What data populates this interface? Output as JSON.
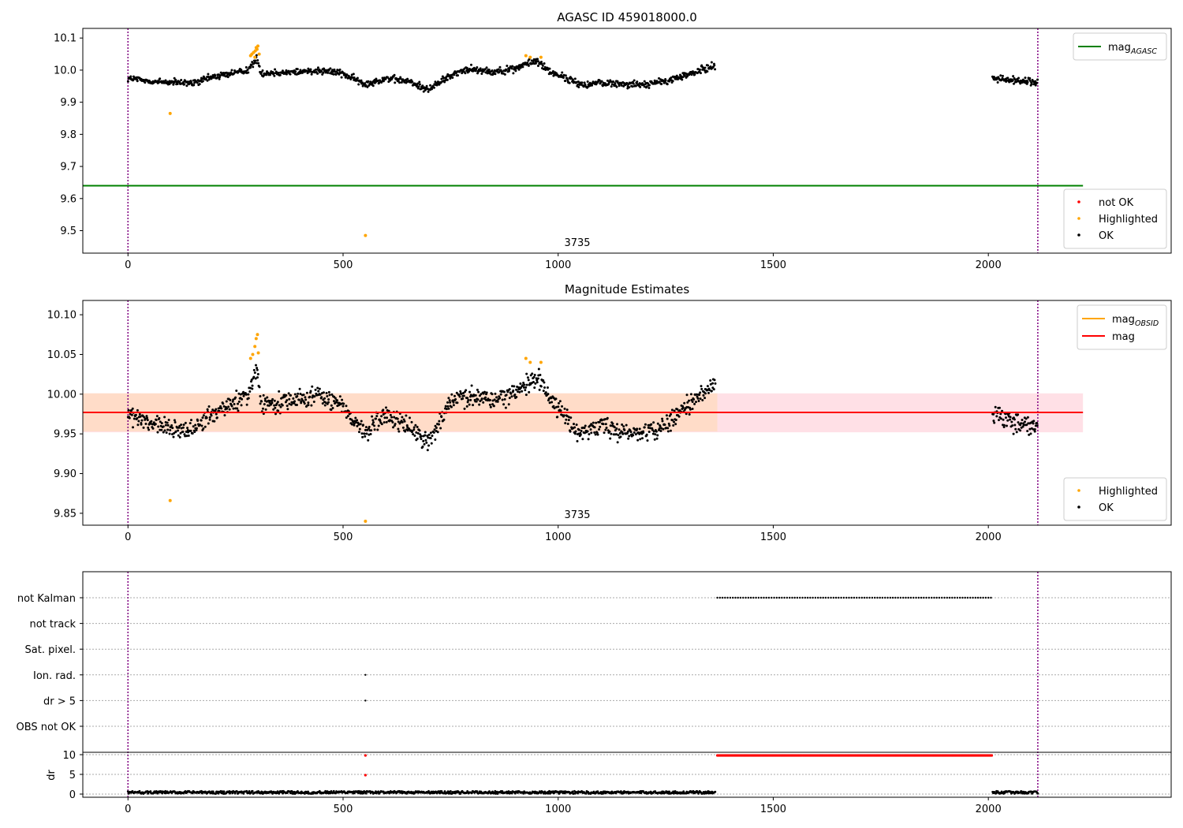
{
  "chart_data": [
    {
      "type": "scatter",
      "title": "AGASC ID 459018000.0",
      "xlim": [
        -105,
        2425
      ],
      "ylim": [
        9.43,
        10.13
      ],
      "xticks": [
        0,
        500,
        1000,
        1500,
        2000
      ],
      "yticks": [
        9.5,
        9.6,
        9.7,
        9.8,
        9.9,
        10.0,
        10.1
      ],
      "vlines": [
        0,
        2115
      ],
      "obsid_label": "3735",
      "obsid_label_x": 1055,
      "hlines": [
        {
          "name": "mag_AGASC",
          "y": 9.64,
          "x": [
            -105,
            2220
          ],
          "color": "#008000"
        }
      ],
      "legend_top": {
        "placement": "top-right",
        "entries": [
          {
            "label": "mag",
            "sub": "AGASC",
            "color": "#008000",
            "kind": "line"
          }
        ]
      },
      "legend_bottom": {
        "placement": "lower-right",
        "entries": [
          {
            "label": "not OK",
            "color": "#ff0000",
            "kind": "dot"
          },
          {
            "label": "Highlighted",
            "color": "#ffa500",
            "kind": "dot"
          },
          {
            "label": "OK",
            "color": "#000000",
            "kind": "dot"
          }
        ]
      },
      "series": [
        {
          "name": "OK",
          "color": "#000000",
          "curve": [
            [
              0,
              9.975
            ],
            [
              50,
              9.965
            ],
            [
              100,
              9.962
            ],
            [
              150,
              9.958
            ],
            [
              200,
              9.98
            ],
            [
              250,
              9.992
            ],
            [
              280,
              10.002
            ],
            [
              300,
              10.035
            ],
            [
              310,
              9.99
            ],
            [
              400,
              9.995
            ],
            [
              450,
              10.0
            ],
            [
              500,
              9.99
            ],
            [
              550,
              9.955
            ],
            [
              600,
              9.975
            ],
            [
              650,
              9.965
            ],
            [
              700,
              9.94
            ],
            [
              750,
              9.985
            ],
            [
              800,
              10.005
            ],
            [
              850,
              9.995
            ],
            [
              900,
              10.005
            ],
            [
              950,
              10.03
            ],
            [
              980,
              9.995
            ],
            [
              1000,
              9.985
            ],
            [
              1050,
              9.955
            ],
            [
              1100,
              9.96
            ],
            [
              1200,
              9.955
            ],
            [
              1250,
              9.965
            ],
            [
              1300,
              9.985
            ],
            [
              1365,
              10.015
            ]
          ],
          "curve2": [
            [
              2010,
              9.975
            ],
            [
              2060,
              9.968
            ],
            [
              2115,
              9.962
            ]
          ],
          "jitter": 0.011
        },
        {
          "name": "Highlighted",
          "color": "#ffa500",
          "points": [
            [
              98,
              9.865
            ],
            [
              285,
              10.045
            ],
            [
              288,
              10.05
            ],
            [
              292,
              10.055
            ],
            [
              296,
              10.06
            ],
            [
              298,
              10.07
            ],
            [
              300,
              10.065
            ],
            [
              302,
              10.075
            ],
            [
              295,
              10.04
            ],
            [
              305,
              10.05
            ],
            [
              552,
              9.485
            ],
            [
              925,
              10.045
            ],
            [
              935,
              10.04
            ],
            [
              960,
              10.04
            ]
          ]
        }
      ]
    },
    {
      "type": "scatter",
      "title": "Magnitude Estimates",
      "xlim": [
        -105,
        2425
      ],
      "ylim": [
        9.835,
        10.118
      ],
      "xticks": [
        0,
        500,
        1000,
        1500,
        2000
      ],
      "yticks": [
        9.85,
        9.9,
        9.95,
        10.0,
        10.05,
        10.1
      ],
      "ytick_labels": [
        "9.85",
        "9.90",
        "9.95",
        "10.00",
        "10.05",
        "10.10"
      ],
      "vlines": [
        0,
        2115
      ],
      "obsid_label": "3735",
      "obsid_label_x": 1055,
      "band_mag": {
        "center": 9.977,
        "low": 9.952,
        "high": 10.001,
        "x": [
          -105,
          2220
        ],
        "color": "#ffe0e6"
      },
      "band_obsid": {
        "low": 9.953,
        "high": 10.001,
        "x": [
          -105,
          1370
        ],
        "color": "#ffdcc8"
      },
      "hlines": [
        {
          "name": "mag_OBSID",
          "y": 9.977,
          "x": [
            -105,
            1370
          ],
          "color": "#ffa500"
        },
        {
          "name": "mag",
          "y": 9.977,
          "x": [
            -105,
            2220
          ],
          "color": "#ff0000"
        }
      ],
      "legend_top": {
        "placement": "top-right",
        "entries": [
          {
            "label": "mag",
            "sub": "OBSID",
            "color": "#ffa500",
            "kind": "line"
          },
          {
            "label": "mag",
            "sub": "",
            "color": "#ff0000",
            "kind": "line"
          }
        ]
      },
      "legend_bottom": {
        "placement": "lower-right",
        "entries": [
          {
            "label": "Highlighted",
            "color": "#ffa500",
            "kind": "dot"
          },
          {
            "label": "OK",
            "color": "#000000",
            "kind": "dot"
          }
        ]
      },
      "series": [
        {
          "name": "OK",
          "color": "#000000",
          "curve": [
            [
              0,
              9.975
            ],
            [
              50,
              9.962
            ],
            [
              100,
              9.957
            ],
            [
              150,
              9.955
            ],
            [
              200,
              9.975
            ],
            [
              250,
              9.99
            ],
            [
              280,
              10.0
            ],
            [
              300,
              10.035
            ],
            [
              310,
              9.985
            ],
            [
              400,
              9.995
            ],
            [
              450,
              9.998
            ],
            [
              500,
              9.985
            ],
            [
              550,
              9.95
            ],
            [
              600,
              9.975
            ],
            [
              650,
              9.96
            ],
            [
              700,
              9.94
            ],
            [
              750,
              9.99
            ],
            [
              800,
              10.0
            ],
            [
              850,
              9.993
            ],
            [
              900,
              10.0
            ],
            [
              950,
              10.025
            ],
            [
              980,
              9.995
            ],
            [
              1000,
              9.983
            ],
            [
              1050,
              9.948
            ],
            [
              1100,
              9.958
            ],
            [
              1200,
              9.952
            ],
            [
              1250,
              9.962
            ],
            [
              1300,
              9.985
            ],
            [
              1365,
              10.012
            ]
          ],
          "curve2": [
            [
              2010,
              9.975
            ],
            [
              2060,
              9.965
            ],
            [
              2115,
              9.96
            ]
          ],
          "jitter": 0.012
        },
        {
          "name": "Highlighted",
          "color": "#ffa500",
          "points": [
            [
              98,
              9.866
            ],
            [
              285,
              10.045
            ],
            [
              290,
              10.05
            ],
            [
              295,
              10.06
            ],
            [
              298,
              10.07
            ],
            [
              301,
              10.075
            ],
            [
              303,
              10.052
            ],
            [
              552,
              9.84
            ],
            [
              925,
              10.045
            ],
            [
              935,
              10.04
            ],
            [
              960,
              10.04
            ]
          ]
        }
      ]
    },
    {
      "type": "scatter",
      "xlim": [
        -105,
        2425
      ],
      "xticks": [
        0,
        500,
        1000,
        1500,
        2000
      ],
      "vlines": [
        0,
        2115
      ],
      "flags": [
        "not Kalman",
        "not track",
        "Sat. pixel.",
        "Ion. rad.",
        "dr > 5",
        "OBS not OK"
      ],
      "flag_points": [
        {
          "flag": "not Kalman",
          "range": [
            1370,
            2008
          ],
          "step": 6
        },
        {
          "flag": "Ion. rad.",
          "x": [
            552
          ]
        },
        {
          "flag": "dr > 5",
          "x": [
            552
          ]
        }
      ],
      "dr_ylabel": "dr",
      "dr_ylim": [
        -0.5,
        10.5
      ],
      "dr_yticks": [
        0,
        5,
        10
      ],
      "dr_series": [
        {
          "name": "dr",
          "color": "#000000",
          "ranges": [
            [
              0,
              1365
            ],
            [
              2010,
              2115
            ]
          ],
          "value": 0.5
        },
        {
          "name": "dr not OK",
          "color": "#ff0000",
          "range": [
            1370,
            2008
          ],
          "value": 9.8,
          "extra": [
            [
              552,
              9.8
            ],
            [
              552,
              4.8
            ]
          ]
        }
      ]
    }
  ]
}
